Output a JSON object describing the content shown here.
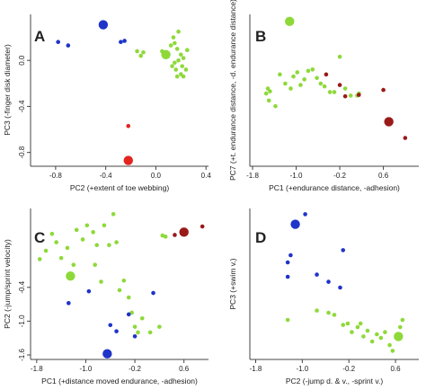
{
  "colors": {
    "green": "#8ed93a",
    "blue": "#1f34c8",
    "red": "#e3241f",
    "darkred": "#9a1a1a",
    "axis": "#444444"
  },
  "chart_data": [
    {
      "type": "scatter",
      "panel": "A",
      "xlabel": "PC2 (+extent of toe webbing)",
      "ylabel": "PC3 (-finger disk diameter)",
      "xlim": [
        -1.0,
        0.42
      ],
      "ylim": [
        -0.92,
        0.4
      ],
      "xticks": [
        {
          "v": -0.8,
          "label": "-0.8"
        },
        {
          "v": -0.4,
          "label": "-0.4"
        },
        {
          "v": 0.0,
          "label": "0.0"
        },
        {
          "v": 0.4,
          "label": "0.4"
        }
      ],
      "yticks": [
        {
          "v": 0.0,
          "label": "0.0"
        },
        {
          "v": -0.4,
          "label": "-0.4"
        },
        {
          "v": -0.8,
          "label": "-0.8"
        }
      ],
      "series": [
        {
          "color": "green",
          "size": 1,
          "points": [
            [
              -0.15,
              0.08
            ],
            [
              -0.12,
              0.04
            ],
            [
              -0.1,
              0.07
            ],
            [
              0.05,
              0.08
            ],
            [
              0.14,
              0.2
            ],
            [
              0.12,
              0.13
            ],
            [
              0.15,
              0.15
            ],
            [
              0.18,
              0.25
            ],
            [
              0.17,
              0.1
            ],
            [
              0.2,
              0.05
            ],
            [
              0.22,
              0.02
            ],
            [
              0.18,
              0.0
            ],
            [
              0.15,
              -0.02
            ],
            [
              0.13,
              -0.05
            ],
            [
              0.16,
              -0.08
            ],
            [
              0.21,
              -0.05
            ],
            [
              0.24,
              -0.08
            ],
            [
              0.2,
              -0.12
            ],
            [
              0.17,
              -0.14
            ],
            [
              0.22,
              -0.14
            ],
            [
              0.25,
              0.09
            ]
          ]
        },
        {
          "color": "green",
          "size": 2,
          "points": [
            [
              0.08,
              0.05
            ]
          ]
        },
        {
          "color": "blue",
          "size": 1,
          "points": [
            [
              -0.78,
              0.16
            ],
            [
              -0.7,
              0.13
            ],
            [
              -0.28,
              0.16
            ],
            [
              -0.25,
              0.17
            ]
          ]
        },
        {
          "color": "blue",
          "size": 2,
          "points": [
            [
              -0.42,
              0.31
            ]
          ]
        },
        {
          "color": "red",
          "size": 1,
          "points": [
            [
              -0.22,
              -0.57
            ]
          ]
        },
        {
          "color": "red",
          "size": 2,
          "points": [
            [
              -0.22,
              -0.87
            ]
          ]
        }
      ]
    },
    {
      "type": "scatter",
      "panel": "B",
      "xlabel": "PC1 (+endurance distance, -adhesion)",
      "ylabel": "PC7 (+t. endurance distance, -d. endurance distance)",
      "xlim": [
        -1.85,
        1.25
      ],
      "ylim": [
        -1.05,
        1.1
      ],
      "xticks": [
        {
          "v": -1.8,
          "label": "-1.8"
        },
        {
          "v": -1.0,
          "label": "-1.0"
        },
        {
          "v": -0.2,
          "label": "-0.2"
        },
        {
          "v": 0.6,
          "label": "0.6"
        }
      ],
      "yticks": [],
      "series": [
        {
          "color": "green",
          "size": 1,
          "points": [
            [
              -1.55,
              -0.02
            ],
            [
              -1.52,
              0.05
            ],
            [
              -1.48,
              0.01
            ],
            [
              -1.5,
              -0.12
            ],
            [
              -1.38,
              -0.2
            ],
            [
              -1.3,
              0.25
            ],
            [
              -1.2,
              0.12
            ],
            [
              -1.1,
              0.05
            ],
            [
              -1.05,
              0.22
            ],
            [
              -0.98,
              0.28
            ],
            [
              -0.92,
              0.1
            ],
            [
              -0.85,
              0.18
            ],
            [
              -0.78,
              0.3
            ],
            [
              -0.7,
              0.32
            ],
            [
              -0.62,
              0.2
            ],
            [
              -0.55,
              0.12
            ],
            [
              -0.48,
              0.08
            ],
            [
              -0.38,
              0.0
            ],
            [
              -0.3,
              0.0
            ],
            [
              -0.2,
              0.5
            ],
            [
              -0.1,
              0.05
            ],
            [
              0.0,
              -0.05
            ],
            [
              0.12,
              -0.05
            ],
            [
              0.15,
              -0.02
            ]
          ]
        },
        {
          "color": "green",
          "size": 2,
          "points": [
            [
              -1.12,
              1.0
            ]
          ]
        },
        {
          "color": "darkred",
          "size": 1,
          "points": [
            [
              -0.45,
              0.25
            ],
            [
              -0.2,
              0.1
            ],
            [
              -0.1,
              -0.06
            ],
            [
              0.15,
              -0.04
            ],
            [
              0.6,
              0.03
            ],
            [
              1.0,
              -0.65
            ]
          ]
        },
        {
          "color": "darkred",
          "size": 2,
          "points": [
            [
              0.7,
              -0.42
            ]
          ]
        }
      ]
    },
    {
      "type": "scatter",
      "panel": "C",
      "xlabel": "PC1 (+distance moved endurance, -adhesion)",
      "ylabel": "PC2 (-jump/sprint velocity)",
      "xlim": [
        -1.9,
        1.0
      ],
      "ylim": [
        -1.68,
        1.0
      ],
      "xticks": [
        {
          "v": -1.8,
          "label": "-1.8"
        },
        {
          "v": -1.0,
          "label": "-1.0"
        },
        {
          "v": -0.2,
          "label": "-0.2"
        },
        {
          "v": 0.6,
          "label": "0.6"
        }
      ],
      "yticks": [
        {
          "v": -0.4,
          "label": "-0.4"
        },
        {
          "v": -1.0,
          "label": "-1.0"
        },
        {
          "v": -1.6,
          "label": "-1.6"
        }
      ],
      "series": [
        {
          "color": "green",
          "size": 1,
          "points": [
            [
              -1.75,
              0.1
            ],
            [
              -1.65,
              0.25
            ],
            [
              -1.55,
              0.55
            ],
            [
              -1.48,
              0.4
            ],
            [
              -1.4,
              0.12
            ],
            [
              -1.3,
              0.3
            ],
            [
              -1.2,
              0.0
            ],
            [
              -1.15,
              0.62
            ],
            [
              -1.05,
              0.45
            ],
            [
              -0.98,
              0.7
            ],
            [
              -0.88,
              0.58
            ],
            [
              -0.85,
              0.0
            ],
            [
              -0.82,
              0.35
            ],
            [
              -0.75,
              -0.3
            ],
            [
              -0.7,
              0.7
            ],
            [
              -0.62,
              0.35
            ],
            [
              -0.55,
              0.9
            ],
            [
              -0.5,
              0.4
            ],
            [
              -0.45,
              -0.45
            ],
            [
              -0.38,
              -0.28
            ],
            [
              -0.3,
              -0.58
            ],
            [
              -0.25,
              -0.85
            ],
            [
              -0.2,
              -1.1
            ],
            [
              -0.15,
              -1.2
            ],
            [
              -0.08,
              -0.95
            ],
            [
              0.05,
              -1.2
            ],
            [
              0.2,
              -1.1
            ],
            [
              0.25,
              0.52
            ],
            [
              0.3,
              0.5
            ]
          ]
        },
        {
          "color": "green",
          "size": 2,
          "points": [
            [
              -1.25,
              -0.2
            ]
          ]
        },
        {
          "color": "blue",
          "size": 1,
          "points": [
            [
              -1.28,
              -0.68
            ],
            [
              -0.95,
              -0.47
            ],
            [
              -0.6,
              -1.07
            ],
            [
              -0.5,
              -1.18
            ],
            [
              -0.3,
              -0.88
            ],
            [
              -0.2,
              -1.27
            ],
            [
              0.1,
              -0.5
            ]
          ]
        },
        {
          "color": "blue",
          "size": 2,
          "points": [
            [
              -0.65,
              -1.58
            ]
          ]
        },
        {
          "color": "darkred",
          "size": 1,
          "points": [
            [
              0.45,
              0.53
            ],
            [
              0.9,
              0.68
            ]
          ]
        },
        {
          "color": "darkred",
          "size": 2,
          "points": [
            [
              0.6,
              0.58
            ]
          ]
        }
      ]
    },
    {
      "type": "scatter",
      "panel": "D",
      "xlabel": "PC2 (-jump d. & v., -sprint v.)",
      "ylabel": "PC3 (+swim v.)",
      "xlim": [
        -1.9,
        1.0
      ],
      "ylim": [
        -1.0,
        1.1
      ],
      "xticks": [
        {
          "v": -1.8,
          "label": "-1.8"
        },
        {
          "v": -1.0,
          "label": "-1.0"
        },
        {
          "v": -0.2,
          "label": "-0.2"
        },
        {
          "v": 0.6,
          "label": "0.6"
        }
      ],
      "yticks": [],
      "series": [
        {
          "color": "green",
          "size": 1,
          "points": [
            [
              -1.25,
              -0.45
            ],
            [
              -0.75,
              -0.32
            ],
            [
              -0.55,
              -0.35
            ],
            [
              -0.45,
              -0.38
            ],
            [
              -0.3,
              -0.52
            ],
            [
              -0.22,
              -0.5
            ],
            [
              -0.15,
              -0.62
            ],
            [
              -0.05,
              -0.55
            ],
            [
              0.0,
              -0.5
            ],
            [
              0.05,
              -0.68
            ],
            [
              0.12,
              -0.6
            ],
            [
              0.2,
              -0.75
            ],
            [
              0.28,
              -0.65
            ],
            [
              0.35,
              -0.7
            ],
            [
              0.42,
              -0.62
            ],
            [
              0.5,
              -0.8
            ],
            [
              0.55,
              -0.88
            ],
            [
              0.68,
              -0.55
            ],
            [
              0.72,
              -0.45
            ]
          ]
        },
        {
          "color": "green",
          "size": 2,
          "points": [
            [
              0.65,
              -0.68
            ]
          ]
        },
        {
          "color": "blue",
          "size": 1,
          "points": [
            [
              -1.25,
              0.15
            ],
            [
              -1.2,
              0.45
            ],
            [
              -1.25,
              0.35
            ],
            [
              -0.95,
              1.02
            ],
            [
              -0.75,
              0.18
            ],
            [
              -0.55,
              0.08
            ],
            [
              -0.35,
              0.0
            ],
            [
              -0.3,
              0.52
            ]
          ]
        },
        {
          "color": "blue",
          "size": 2,
          "points": [
            [
              -1.12,
              0.88
            ]
          ]
        }
      ]
    }
  ]
}
